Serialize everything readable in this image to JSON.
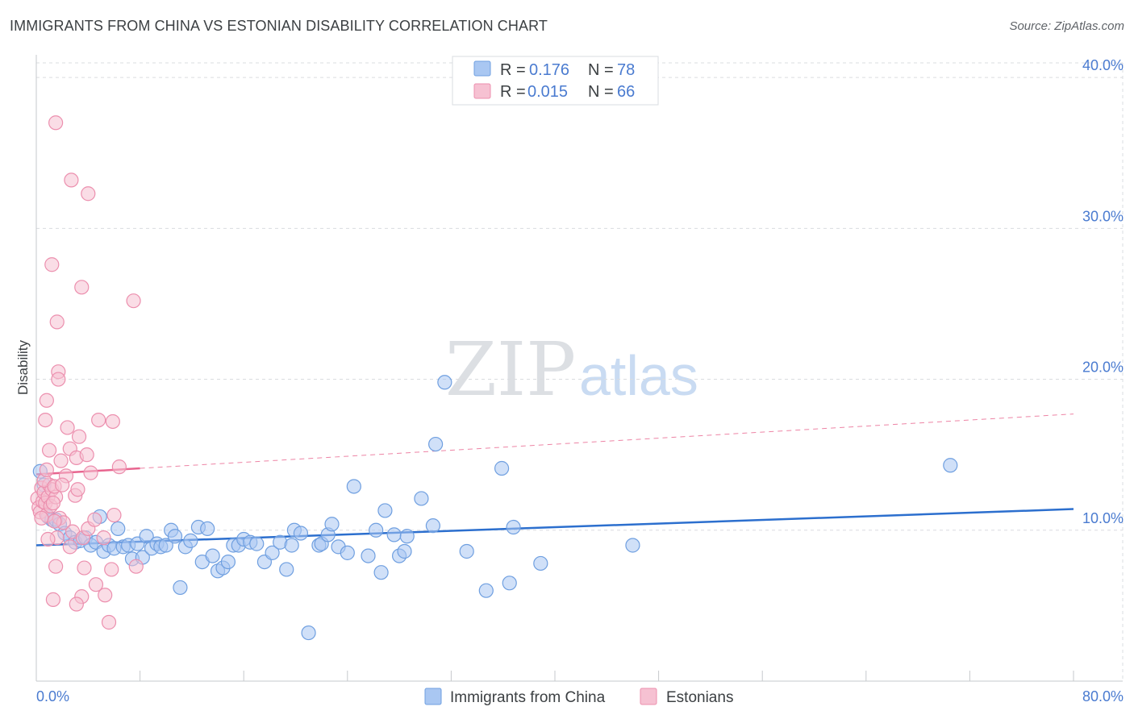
{
  "header": {
    "title": "IMMIGRANTS FROM CHINA VS ESTONIAN DISABILITY CORRELATION CHART",
    "source": "Source: ZipAtlas.com"
  },
  "watermark": {
    "zip": "ZIP",
    "atlas": "atlas"
  },
  "colors": {
    "blue_fill": "#a9c7f2",
    "blue_stroke": "#6f9fe0",
    "blue_line": "#2c6fce",
    "pink_fill": "#f6c1d2",
    "pink_stroke": "#ec8fae",
    "pink_line": "#e8658f",
    "tick_text": "#4a7bd0",
    "grid": "#dadce0"
  },
  "legend": {
    "rows": [
      {
        "r_label": "R =",
        "r_value": "0.176",
        "n_label": "N =",
        "n_value": "78"
      },
      {
        "r_label": "R =",
        "r_value": "0.015",
        "n_label": "N =",
        "n_value": "66"
      }
    ]
  },
  "bottom_legend": [
    "Immigrants from China",
    "Estonians"
  ],
  "chart_data": {
    "type": "scatter",
    "title": "IMMIGRANTS FROM CHINA VS ESTONIAN DISABILITY CORRELATION CHART",
    "xlabel": "",
    "ylabel": "Disability",
    "xlim": [
      0,
      80
    ],
    "ylim": [
      0,
      41.5
    ],
    "y_ticks": [
      10,
      20,
      30,
      40
    ],
    "y_tick_labels": [
      "10.0%",
      "20.0%",
      "30.0%",
      "40.0%"
    ],
    "x_tick_labels": [
      "0.0%",
      "80.0%"
    ],
    "grid": true,
    "legend_position": "top-center",
    "series": [
      {
        "name": "Immigrants from China",
        "R": 0.176,
        "N": 78,
        "trend": {
          "x": [
            0,
            80
          ],
          "y": [
            9.0,
            11.4
          ],
          "dashed_x_from": null
        },
        "points": [
          [
            0.3,
            13.9
          ],
          [
            0.6,
            13.0
          ],
          [
            0.9,
            10.9
          ],
          [
            1.2,
            10.7
          ],
          [
            1.5,
            10.7
          ],
          [
            1.8,
            10.4
          ],
          [
            2.2,
            9.8
          ],
          [
            2.6,
            9.5
          ],
          [
            3.0,
            9.2
          ],
          [
            3.4,
            9.3
          ],
          [
            3.8,
            9.5
          ],
          [
            4.2,
            9.0
          ],
          [
            4.6,
            9.2
          ],
          [
            4.9,
            10.9
          ],
          [
            5.2,
            8.6
          ],
          [
            5.6,
            9.0
          ],
          [
            6.0,
            8.8
          ],
          [
            6.3,
            10.1
          ],
          [
            6.7,
            8.9
          ],
          [
            7.1,
            9.0
          ],
          [
            7.4,
            8.1
          ],
          [
            7.8,
            9.1
          ],
          [
            8.2,
            8.2
          ],
          [
            8.5,
            9.6
          ],
          [
            8.9,
            8.8
          ],
          [
            9.3,
            9.1
          ],
          [
            9.6,
            8.9
          ],
          [
            10.0,
            9.0
          ],
          [
            10.4,
            10.0
          ],
          [
            10.7,
            9.6
          ],
          [
            11.1,
            6.2
          ],
          [
            11.5,
            8.9
          ],
          [
            11.9,
            9.3
          ],
          [
            12.5,
            10.2
          ],
          [
            12.8,
            7.9
          ],
          [
            13.2,
            10.1
          ],
          [
            13.6,
            8.3
          ],
          [
            14.0,
            7.3
          ],
          [
            14.4,
            7.5
          ],
          [
            14.8,
            7.9
          ],
          [
            15.2,
            9.0
          ],
          [
            15.6,
            9.0
          ],
          [
            16.0,
            9.4
          ],
          [
            16.5,
            9.2
          ],
          [
            17.0,
            9.1
          ],
          [
            17.6,
            7.9
          ],
          [
            18.2,
            8.5
          ],
          [
            18.8,
            9.2
          ],
          [
            19.3,
            7.4
          ],
          [
            19.7,
            9.0
          ],
          [
            19.9,
            10.0
          ],
          [
            20.4,
            9.8
          ],
          [
            21.0,
            3.2
          ],
          [
            21.8,
            9.0
          ],
          [
            22.0,
            9.1
          ],
          [
            22.5,
            9.7
          ],
          [
            22.8,
            10.4
          ],
          [
            23.3,
            8.9
          ],
          [
            24.0,
            8.5
          ],
          [
            24.5,
            12.9
          ],
          [
            25.6,
            8.3
          ],
          [
            26.2,
            10.0
          ],
          [
            26.6,
            7.2
          ],
          [
            26.9,
            11.3
          ],
          [
            27.6,
            9.7
          ],
          [
            28.0,
            8.3
          ],
          [
            28.6,
            9.6
          ],
          [
            28.4,
            8.6
          ],
          [
            29.7,
            12.1
          ],
          [
            30.6,
            10.3
          ],
          [
            30.8,
            15.7
          ],
          [
            31.5,
            19.8
          ],
          [
            33.2,
            8.6
          ],
          [
            34.7,
            6.0
          ],
          [
            35.9,
            14.1
          ],
          [
            36.5,
            6.5
          ],
          [
            36.8,
            10.2
          ],
          [
            38.9,
            7.8
          ],
          [
            46.0,
            9.0
          ],
          [
            70.5,
            14.3
          ]
        ]
      },
      {
        "name": "Estonians",
        "R": 0.015,
        "N": 66,
        "trend": {
          "x": [
            0,
            80
          ],
          "y": [
            13.7,
            17.7
          ],
          "solid_until_x": 8
        },
        "points": [
          [
            0.1,
            12.1
          ],
          [
            0.2,
            11.5
          ],
          [
            0.3,
            11.2
          ],
          [
            0.4,
            12.8
          ],
          [
            0.5,
            11.9
          ],
          [
            0.6,
            12.5
          ],
          [
            0.7,
            11.8
          ],
          [
            0.8,
            11.0
          ],
          [
            0.9,
            12.2
          ],
          [
            1.0,
            13.0
          ],
          [
            1.1,
            11.6
          ],
          [
            1.2,
            12.7
          ],
          [
            0.4,
            10.8
          ],
          [
            0.6,
            13.3
          ],
          [
            0.8,
            14.0
          ],
          [
            1.0,
            15.3
          ],
          [
            0.7,
            17.3
          ],
          [
            0.8,
            18.6
          ],
          [
            1.5,
            12.2
          ],
          [
            1.3,
            11.8
          ],
          [
            1.4,
            12.9
          ],
          [
            1.6,
            9.5
          ],
          [
            1.8,
            10.8
          ],
          [
            1.9,
            14.6
          ],
          [
            2.1,
            10.5
          ],
          [
            2.3,
            13.6
          ],
          [
            2.4,
            16.8
          ],
          [
            2.6,
            15.4
          ],
          [
            2.8,
            9.9
          ],
          [
            3.0,
            12.3
          ],
          [
            3.1,
            14.8
          ],
          [
            3.2,
            12.7
          ],
          [
            3.3,
            16.2
          ],
          [
            3.5,
            5.6
          ],
          [
            3.6,
            9.5
          ],
          [
            3.7,
            7.5
          ],
          [
            3.9,
            15.0
          ],
          [
            4.0,
            10.1
          ],
          [
            4.2,
            13.8
          ],
          [
            4.5,
            10.7
          ],
          [
            4.6,
            6.4
          ],
          [
            4.8,
            17.3
          ],
          [
            5.2,
            9.5
          ],
          [
            5.3,
            5.7
          ],
          [
            5.6,
            3.9
          ],
          [
            5.8,
            7.4
          ],
          [
            5.9,
            17.2
          ],
          [
            6.0,
            11.0
          ],
          [
            6.4,
            14.2
          ],
          [
            7.5,
            25.2
          ],
          [
            7.7,
            7.6
          ],
          [
            1.2,
            27.6
          ],
          [
            1.5,
            37.0
          ],
          [
            1.6,
            23.8
          ],
          [
            1.7,
            20.5
          ],
          [
            1.7,
            20.0
          ],
          [
            2.7,
            33.2
          ],
          [
            3.5,
            26.1
          ],
          [
            4.0,
            32.3
          ],
          [
            1.5,
            7.6
          ],
          [
            1.3,
            5.4
          ],
          [
            2.6,
            8.9
          ],
          [
            3.1,
            5.1
          ],
          [
            2.0,
            13.0
          ],
          [
            0.9,
            9.4
          ],
          [
            1.4,
            10.6
          ]
        ]
      }
    ]
  }
}
